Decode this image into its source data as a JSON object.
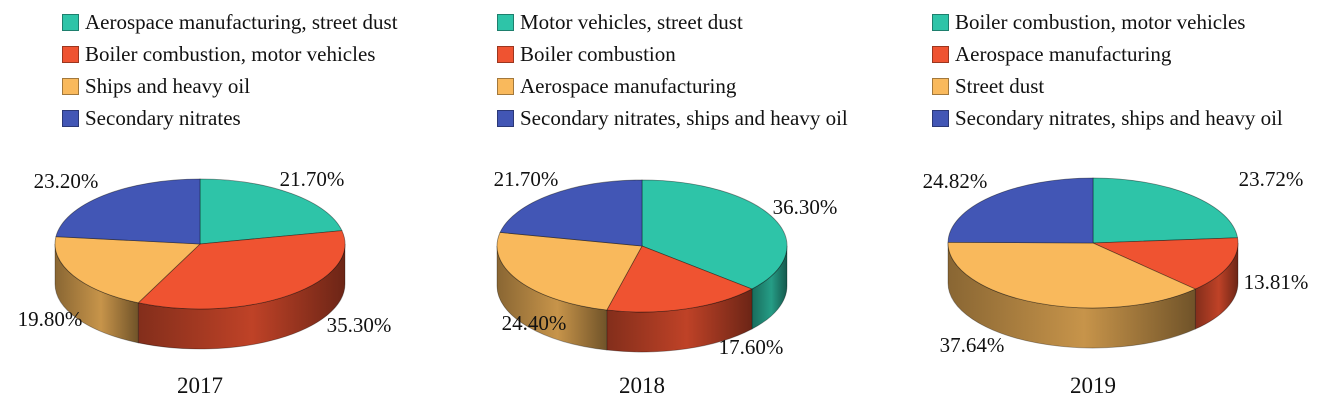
{
  "colors": {
    "teal": "#2ec4a8",
    "red": "#ef5331",
    "orange": "#f9b95c",
    "blue": "#4256b5"
  },
  "chart_data": [
    {
      "type": "pie",
      "title": "2017",
      "series": [
        {
          "name": "Aerospace manufacturing, street dust",
          "value": 21.7,
          "label": "21.70%",
          "color": "teal"
        },
        {
          "name": "Boiler combustion, motor vehicles",
          "value": 35.3,
          "label": "35.30%",
          "color": "red"
        },
        {
          "name": "Ships and heavy oil",
          "value": 19.8,
          "label": "19.80%",
          "color": "orange"
        },
        {
          "name": "Secondary nitrates",
          "value": 23.2,
          "label": "23.20%",
          "color": "blue"
        }
      ]
    },
    {
      "type": "pie",
      "title": "2018",
      "series": [
        {
          "name": "Motor vehicles, street dust",
          "value": 36.3,
          "label": "36.30%",
          "color": "teal"
        },
        {
          "name": "Boiler combustion",
          "value": 17.6,
          "label": "17.60%",
          "color": "red"
        },
        {
          "name": "Aerospace manufacturing",
          "value": 24.4,
          "label": "24.40%",
          "color": "orange"
        },
        {
          "name": "Secondary nitrates, ships and heavy oil",
          "value": 21.7,
          "label": "21.70%",
          "color": "blue"
        }
      ]
    },
    {
      "type": "pie",
      "title": "2019",
      "series": [
        {
          "name": "Boiler combustion, motor vehicles",
          "value": 23.72,
          "label": "23.72%",
          "color": "teal"
        },
        {
          "name": "Aerospace manufacturing",
          "value": 13.81,
          "label": "13.81%",
          "color": "red"
        },
        {
          "name": "Street dust",
          "value": 37.64,
          "label": "37.64%",
          "color": "orange"
        },
        {
          "name": "Secondary nitrates, ships and heavy oil",
          "value": 24.82,
          "label": "24.82%",
          "color": "blue"
        }
      ]
    }
  ]
}
